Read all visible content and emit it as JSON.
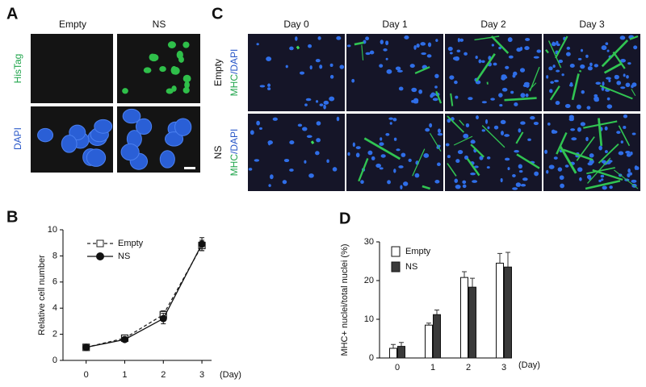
{
  "panels": {
    "A": {
      "label": "A",
      "columns": [
        "Empty",
        "NS"
      ],
      "rows": [
        "HisTag",
        "DAPI"
      ]
    },
    "C": {
      "label": "C",
      "columns": [
        "Day 0",
        "Day 1",
        "Day 2",
        "Day 3"
      ],
      "rows": [
        {
          "condition": "Empty",
          "stain_1": "MHC",
          "stain_2": "/DAPI"
        },
        {
          "condition": "NS",
          "stain_1": "MHC",
          "stain_2": "/DAPI"
        }
      ]
    }
  },
  "chart_data": [
    {
      "panel_label": "B",
      "type": "line",
      "y_label": "Relative cell number",
      "x_label": "(Day)",
      "x": [
        0,
        1,
        2,
        3
      ],
      "xlim": [
        -0.6,
        3.25
      ],
      "xticks": [
        0,
        1,
        2,
        3
      ],
      "ylim": [
        0,
        10
      ],
      "yticks": [
        0,
        2,
        4,
        6,
        8,
        10
      ],
      "legend": "upper left",
      "series": [
        {
          "name": "Empty",
          "color": "#222222",
          "line_style": "dashed",
          "marker": "open-square",
          "values": [
            1.0,
            1.7,
            3.5,
            8.8
          ],
          "errors": [
            0.1,
            0.15,
            0.3,
            0.4
          ]
        },
        {
          "name": "NS",
          "color": "#111111",
          "line_style": "solid",
          "marker": "filled-circle",
          "values": [
            1.0,
            1.6,
            3.2,
            8.9
          ],
          "errors": [
            0.1,
            0.1,
            0.4,
            0.5
          ]
        }
      ]
    },
    {
      "panel_label": "D",
      "type": "bar",
      "y_label": "MHC+ nuclei/total nuclei (%)",
      "x_label": "(Day)",
      "categories": [
        "0",
        "1",
        "2",
        "3"
      ],
      "ylim": [
        0,
        30
      ],
      "yticks": [
        0,
        10,
        20,
        30
      ],
      "legend": "upper left",
      "series": [
        {
          "name": "Empty",
          "color": "#ffffff",
          "values": [
            2.5,
            8.5,
            20.8,
            24.5
          ],
          "errors": [
            1.0,
            0.5,
            1.5,
            2.5
          ]
        },
        {
          "name": "NS",
          "color": "#3a3a3a",
          "values": [
            3.0,
            11.2,
            18.3,
            23.5
          ],
          "errors": [
            1.0,
            1.2,
            2.3,
            3.8
          ]
        }
      ]
    }
  ]
}
